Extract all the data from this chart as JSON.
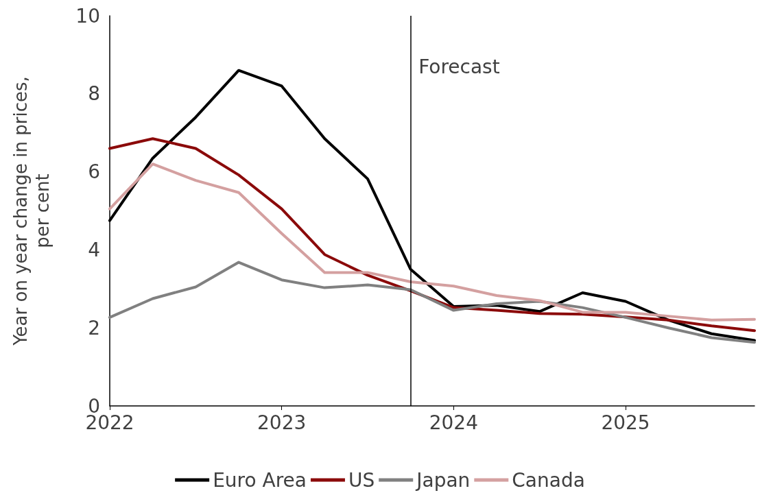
{
  "chart_data": {
    "type": "line",
    "ylabel": "Year on year change in prices,\nper cent",
    "x": [
      2022,
      2022.25,
      2022.5,
      2022.75,
      2023,
      2023.25,
      2023.5,
      2023.75,
      2024,
      2024.25,
      2024.5,
      2024.75,
      2025,
      2025.25,
      2025.5,
      2025.75
    ],
    "series": [
      {
        "name": "Euro Area",
        "color": "#000000",
        "values": [
          4.75,
          6.35,
          7.4,
          8.6,
          8.2,
          6.85,
          5.82,
          3.5,
          2.55,
          2.58,
          2.42,
          2.9,
          2.68,
          2.2,
          1.85,
          1.68
        ]
      },
      {
        "name": "US",
        "color": "#8b0a0a",
        "values": [
          6.6,
          6.85,
          6.6,
          5.92,
          5.05,
          3.88,
          3.35,
          2.95,
          2.52,
          2.45,
          2.37,
          2.35,
          2.28,
          2.2,
          2.05,
          1.93
        ]
      },
      {
        "name": "Japan",
        "color": "#808080",
        "values": [
          2.27,
          2.75,
          3.05,
          3.68,
          3.23,
          3.03,
          3.1,
          2.98,
          2.45,
          2.62,
          2.68,
          2.52,
          2.27,
          2.0,
          1.75,
          1.63
        ]
      },
      {
        "name": "Canada",
        "color": "#d4a0a0",
        "values": [
          5.05,
          6.2,
          5.78,
          5.47,
          4.42,
          3.42,
          3.42,
          3.18,
          3.07,
          2.83,
          2.7,
          2.4,
          2.4,
          2.3,
          2.2,
          2.22
        ]
      }
    ],
    "xlim": [
      2022,
      2025.75
    ],
    "xticks": [
      2022,
      2023,
      2024,
      2025
    ],
    "ylim": [
      0,
      10
    ],
    "yticks": [
      0,
      2,
      4,
      6,
      8,
      10
    ],
    "ref_lines": [
      {
        "axis": "x",
        "value": 2023.75,
        "label": "Forecast",
        "color": "#000000",
        "line_style": "solid"
      }
    ],
    "grid": false,
    "legend": "bottom",
    "marker": "none",
    "line_style": "solid"
  }
}
